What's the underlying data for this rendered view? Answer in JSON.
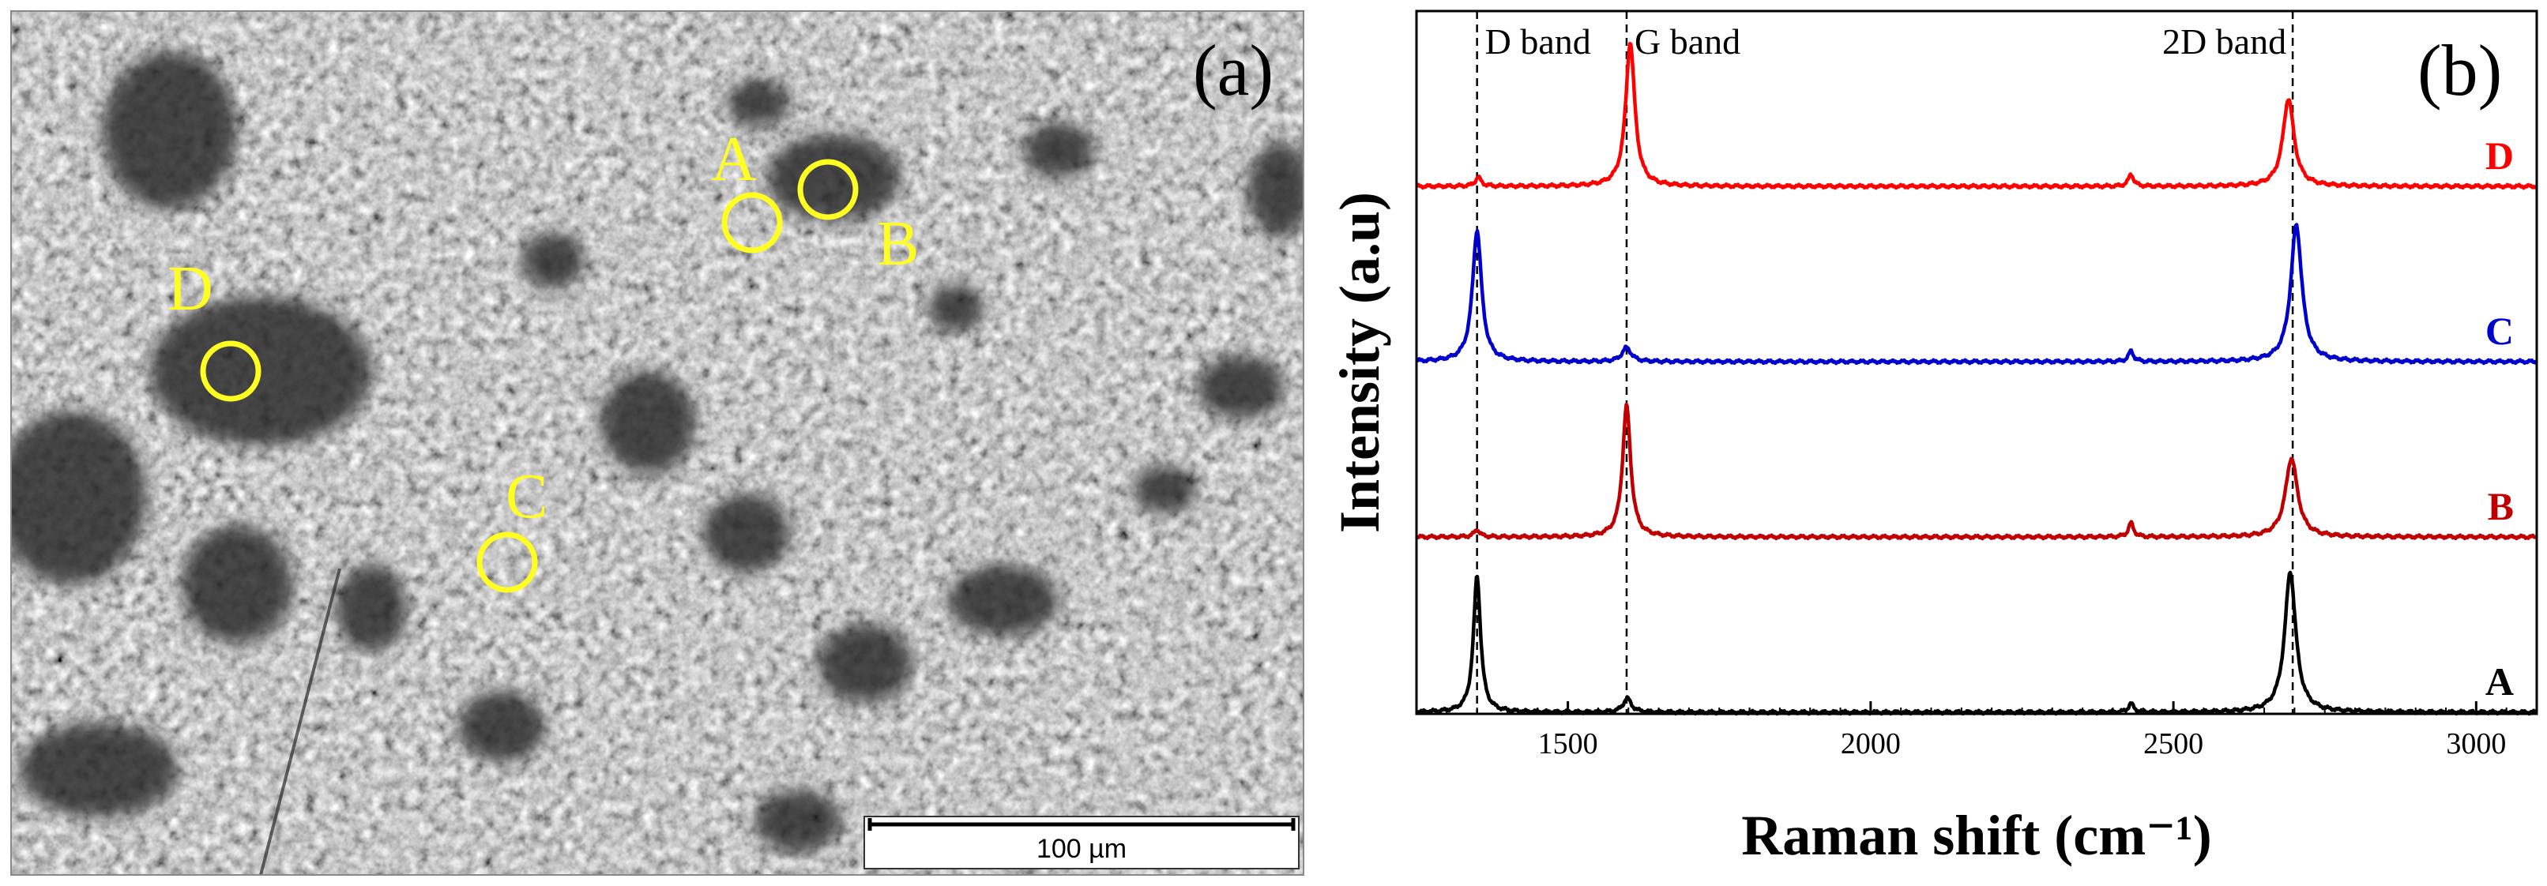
{
  "panel_a": {
    "label": "(a)",
    "scale_bar_text": "100 µm",
    "markers": [
      {
        "label": "A",
        "color": "#ffff22"
      },
      {
        "label": "B",
        "color": "#ffff22"
      },
      {
        "label": "C",
        "color": "#ffff22"
      },
      {
        "label": "D",
        "color": "#ffff22"
      }
    ]
  },
  "panel_b": {
    "label": "(b)"
  },
  "chart_data": {
    "type": "line",
    "title": "",
    "xlabel": "Raman shift (cm⁻¹)",
    "ylabel": "Intensity (a.u)",
    "xlim": [
      1250,
      3100
    ],
    "xticks": [
      1500,
      2000,
      2500,
      3000
    ],
    "yticks": [],
    "grid": false,
    "reference_lines": [
      {
        "label": "D band",
        "x": 1350
      },
      {
        "label": "G band",
        "x": 1597
      },
      {
        "label": "2D band",
        "x": 2697
      }
    ],
    "series": [
      {
        "name": "A",
        "color": "#000000",
        "baseline": 0.0,
        "peaks": [
          {
            "x": 1350,
            "height": 0.78,
            "width": 7
          },
          {
            "x": 1598,
            "height": 0.08,
            "width": 8
          },
          {
            "x": 2430,
            "height": 0.05,
            "width": 5
          },
          {
            "x": 2693,
            "height": 0.8,
            "width": 11
          }
        ]
      },
      {
        "name": "B",
        "color": "#c00000",
        "baseline": 1.0,
        "peaks": [
          {
            "x": 1350,
            "height": 0.04,
            "width": 6
          },
          {
            "x": 1597,
            "height": 0.75,
            "width": 8
          },
          {
            "x": 2430,
            "height": 0.08,
            "width": 5
          },
          {
            "x": 2695,
            "height": 0.45,
            "width": 12
          }
        ]
      },
      {
        "name": "C",
        "color": "#0000cc",
        "baseline": 2.0,
        "peaks": [
          {
            "x": 1350,
            "height": 0.75,
            "width": 9
          },
          {
            "x": 1597,
            "height": 0.08,
            "width": 9
          },
          {
            "x": 2430,
            "height": 0.06,
            "width": 5
          },
          {
            "x": 2703,
            "height": 0.78,
            "width": 11
          }
        ]
      },
      {
        "name": "D",
        "color": "#ff0000",
        "baseline": 3.0,
        "peaks": [
          {
            "x": 1352,
            "height": 0.05,
            "width": 6
          },
          {
            "x": 1603,
            "height": 0.82,
            "width": 9
          },
          {
            "x": 2430,
            "height": 0.07,
            "width": 5
          },
          {
            "x": 2690,
            "height": 0.5,
            "width": 11
          }
        ]
      }
    ]
  }
}
